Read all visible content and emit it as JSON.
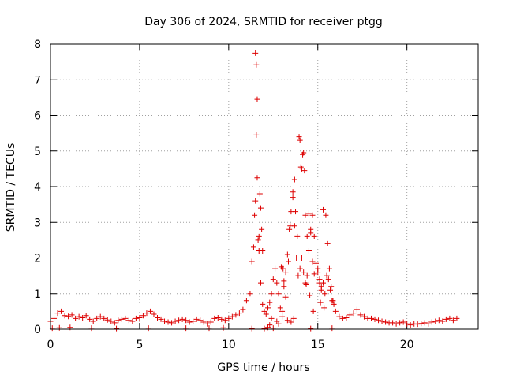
{
  "chart_data": {
    "type": "scatter",
    "title": "Day 306 of 2024, SRMTID for receiver ptgg",
    "xlabel": "GPS time / hours",
    "ylabel": "SRMTID / TECUs",
    "xlim": [
      0,
      24
    ],
    "ylim": [
      0,
      8
    ],
    "xticks": [
      0,
      5,
      10,
      15,
      20
    ],
    "xtick_labels": [
      "0",
      "5",
      "10",
      "15",
      "20"
    ],
    "yticks": [
      0,
      1,
      2,
      3,
      4,
      5,
      6,
      7,
      8
    ],
    "ytick_labels": [
      "0",
      "1",
      "2",
      "3",
      "4",
      "5",
      "6",
      "7",
      "8"
    ],
    "grid": true,
    "legend": "none",
    "marker": "+",
    "series": [
      {
        "name": "SRMTID",
        "color": "#dd0000",
        "x": [
          0.0,
          0.2,
          0.4,
          0.6,
          0.8,
          1.0,
          1.2,
          1.4,
          1.6,
          1.8,
          2.0,
          2.2,
          2.4,
          2.6,
          2.8,
          3.0,
          3.2,
          3.4,
          3.6,
          3.8,
          4.0,
          4.2,
          4.4,
          4.6,
          4.8,
          5.0,
          5.2,
          5.4,
          5.6,
          5.8,
          6.0,
          6.2,
          6.4,
          6.6,
          6.8,
          7.0,
          7.2,
          7.4,
          7.6,
          7.8,
          8.0,
          8.2,
          8.4,
          8.6,
          8.8,
          9.0,
          9.2,
          9.4,
          9.6,
          9.8,
          10.0,
          10.2,
          10.4,
          10.6,
          10.8,
          11.0,
          11.2,
          11.3,
          11.4,
          11.45,
          11.5,
          11.55,
          11.6,
          11.7,
          11.8,
          11.9,
          12.0,
          12.1,
          12.2,
          12.3,
          12.4,
          12.5,
          12.6,
          12.7,
          12.8,
          12.9,
          13.0,
          13.1,
          13.2,
          13.3,
          13.4,
          13.5,
          13.6,
          13.7,
          13.8,
          13.9,
          14.0,
          14.1,
          14.2,
          14.3,
          14.4,
          14.5,
          14.6,
          14.7,
          14.8,
          14.9,
          15.0,
          15.1,
          15.2,
          15.3,
          15.4,
          15.5,
          15.6,
          15.7,
          15.8,
          15.9,
          16.0,
          16.2,
          16.4,
          16.6,
          16.8,
          17.0,
          17.2,
          17.4,
          17.6,
          17.8,
          18.0,
          18.2,
          18.4,
          18.6,
          18.8,
          19.0,
          19.2,
          19.4,
          19.6,
          19.8,
          20.0,
          20.2,
          20.4,
          20.6,
          20.8,
          21.0,
          21.2,
          21.4,
          21.6,
          21.8,
          22.0,
          22.2,
          22.4,
          22.6,
          22.8,
          11.5,
          11.55,
          11.6,
          11.65,
          11.7,
          11.75,
          11.8,
          11.85,
          11.9,
          12.95,
          13.05,
          13.1,
          13.2,
          13.35,
          13.45,
          13.6,
          13.7,
          13.75,
          13.85,
          13.95,
          14.0,
          14.05,
          14.1,
          14.15,
          14.2,
          14.25,
          14.3,
          14.4,
          14.5,
          14.6,
          14.7,
          14.8,
          14.9,
          15.0,
          15.1,
          15.2,
          15.3,
          15.45,
          15.55,
          15.65,
          15.75,
          15.85,
          12.2,
          12.3,
          12.4,
          12.7,
          12.8,
          13.0,
          13.3,
          13.5,
          13.65,
          14.35,
          14.55,
          14.75,
          15.15,
          15.35,
          0.1,
          0.5,
          1.1,
          2.3,
          3.7,
          5.5,
          7.6,
          8.9,
          9.7,
          11.3,
          12.0,
          12.5,
          14.6,
          15.8
        ],
        "y": [
          0.22,
          0.3,
          0.45,
          0.5,
          0.38,
          0.36,
          0.4,
          0.3,
          0.35,
          0.32,
          0.38,
          0.28,
          0.22,
          0.3,
          0.35,
          0.3,
          0.26,
          0.22,
          0.18,
          0.25,
          0.28,
          0.3,
          0.25,
          0.22,
          0.3,
          0.32,
          0.38,
          0.45,
          0.5,
          0.42,
          0.32,
          0.28,
          0.22,
          0.2,
          0.18,
          0.22,
          0.25,
          0.28,
          0.25,
          0.2,
          0.22,
          0.28,
          0.25,
          0.2,
          0.15,
          0.2,
          0.3,
          0.32,
          0.28,
          0.25,
          0.3,
          0.35,
          0.4,
          0.45,
          0.55,
          0.8,
          1.0,
          1.9,
          2.3,
          3.2,
          3.6,
          5.45,
          6.45,
          2.6,
          1.3,
          0.7,
          0.5,
          0.42,
          0.6,
          0.75,
          1.0,
          1.4,
          1.7,
          1.3,
          1.0,
          0.6,
          0.5,
          1.2,
          1.6,
          2.1,
          2.8,
          3.3,
          3.7,
          2.9,
          2.0,
          1.5,
          1.7,
          2.0,
          1.6,
          1.3,
          1.5,
          2.2,
          2.8,
          3.2,
          2.6,
          2.0,
          1.7,
          1.4,
          1.2,
          1.3,
          1.0,
          1.5,
          1.4,
          1.1,
          0.8,
          0.7,
          0.5,
          0.35,
          0.3,
          0.32,
          0.4,
          0.45,
          0.55,
          0.4,
          0.35,
          0.3,
          0.3,
          0.28,
          0.25,
          0.22,
          0.2,
          0.18,
          0.18,
          0.15,
          0.18,
          0.2,
          0.15,
          0.12,
          0.15,
          0.14,
          0.16,
          0.18,
          0.15,
          0.2,
          0.22,
          0.25,
          0.22,
          0.28,
          0.3,
          0.25,
          0.3,
          7.75,
          7.42,
          4.25,
          2.5,
          2.2,
          3.8,
          3.4,
          2.8,
          2.2,
          1.75,
          1.7,
          1.35,
          0.9,
          1.9,
          2.9,
          3.85,
          4.2,
          3.3,
          2.6,
          5.4,
          5.3,
          4.55,
          4.5,
          4.9,
          4.95,
          4.45,
          3.2,
          2.6,
          3.25,
          2.7,
          1.9,
          1.55,
          1.85,
          1.6,
          1.3,
          1.1,
          3.35,
          3.2,
          2.4,
          1.7,
          1.2,
          0.8,
          0.05,
          0.12,
          0.3,
          0.22,
          0.15,
          0.35,
          0.25,
          0.2,
          0.3,
          1.25,
          0.95,
          0.5,
          0.75,
          0.6,
          0.03,
          0.04,
          0.05,
          0.03,
          0.02,
          0.03,
          0.03,
          0.03,
          0.04,
          0.02,
          0.02,
          0.03,
          0.02,
          0.03
        ]
      }
    ]
  }
}
